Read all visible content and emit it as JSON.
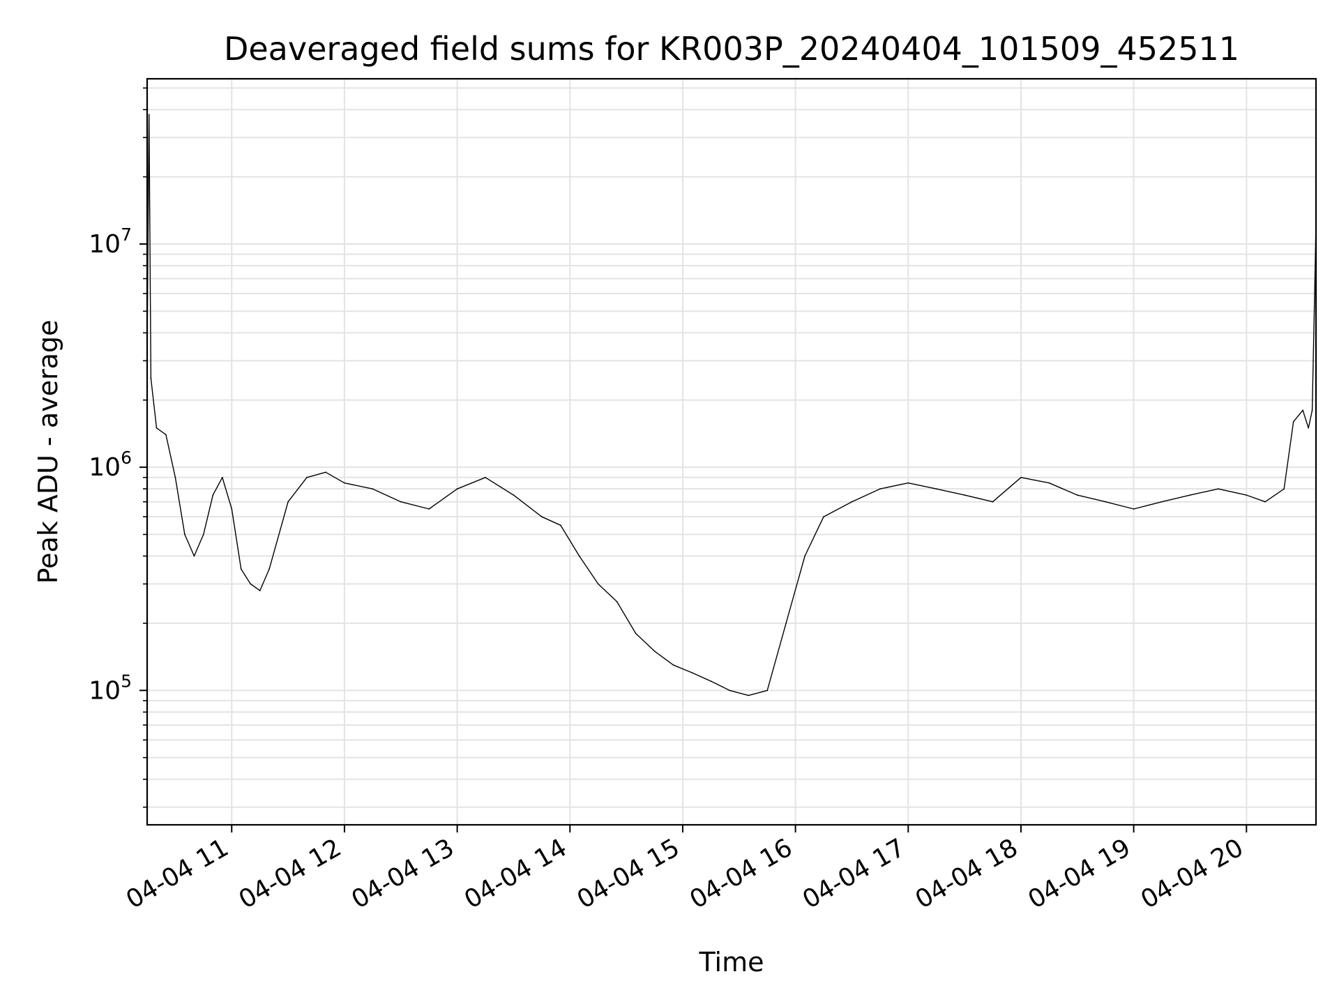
{
  "chart_data": {
    "type": "line",
    "title": "Deaveraged field sums for KR003P_20240404_101509_452511",
    "xlabel": "Time",
    "ylabel": "Peak ADU - average",
    "yscale": "log",
    "grid": true,
    "legend": "none",
    "xlim": [
      "2024-04-04 10:15",
      "2024-04-04 20:37"
    ],
    "ylim": [
      25000,
      55000000
    ],
    "x_tick_labels": [
      "04-04 11",
      "04-04 12",
      "04-04 13",
      "04-04 14",
      "04-04 15",
      "04-04 16",
      "04-04 17",
      "04-04 18",
      "04-04 19",
      "04-04 20"
    ],
    "y_tick_labels": [
      {
        "base": "10",
        "exponent": "5",
        "value": 100000
      },
      {
        "base": "10",
        "exponent": "6",
        "value": 1000000
      },
      {
        "base": "10",
        "exponent": "7",
        "value": 10000000
      }
    ],
    "series": [
      {
        "color": "#000000",
        "x": [
          "2024-04-04 10:15",
          "2024-04-04 10:16",
          "2024-04-04 10:17",
          "2024-04-04 10:20",
          "2024-04-04 10:25",
          "2024-04-04 10:30",
          "2024-04-04 10:35",
          "2024-04-04 10:40",
          "2024-04-04 10:45",
          "2024-04-04 10:50",
          "2024-04-04 10:55",
          "2024-04-04 11:00",
          "2024-04-04 11:05",
          "2024-04-04 11:10",
          "2024-04-04 11:15",
          "2024-04-04 11:20",
          "2024-04-04 11:30",
          "2024-04-04 11:40",
          "2024-04-04 11:50",
          "2024-04-04 12:00",
          "2024-04-04 12:15",
          "2024-04-04 12:30",
          "2024-04-04 12:45",
          "2024-04-04 13:00",
          "2024-04-04 13:15",
          "2024-04-04 13:30",
          "2024-04-04 13:45",
          "2024-04-04 13:55",
          "2024-04-04 14:05",
          "2024-04-04 14:15",
          "2024-04-04 14:25",
          "2024-04-04 14:35",
          "2024-04-04 14:45",
          "2024-04-04 14:55",
          "2024-04-04 15:05",
          "2024-04-04 15:15",
          "2024-04-04 15:25",
          "2024-04-04 15:35",
          "2024-04-04 15:45",
          "2024-04-04 15:55",
          "2024-04-04 16:05",
          "2024-04-04 16:15",
          "2024-04-04 16:30",
          "2024-04-04 16:45",
          "2024-04-04 17:00",
          "2024-04-04 17:15",
          "2024-04-04 17:30",
          "2024-04-04 17:45",
          "2024-04-04 18:00",
          "2024-04-04 18:15",
          "2024-04-04 18:30",
          "2024-04-04 18:45",
          "2024-04-04 19:00",
          "2024-04-04 19:15",
          "2024-04-04 19:30",
          "2024-04-04 19:45",
          "2024-04-04 20:00",
          "2024-04-04 20:10",
          "2024-04-04 20:20",
          "2024-04-04 20:25",
          "2024-04-04 20:30",
          "2024-04-04 20:33",
          "2024-04-04 20:35",
          "2024-04-04 20:37"
        ],
        "values": [
          3500000,
          38000000,
          2500000,
          1500000,
          1400000,
          900000,
          500000,
          400000,
          500000,
          750000,
          900000,
          650000,
          350000,
          300000,
          280000,
          350000,
          700000,
          900000,
          950000,
          850000,
          800000,
          700000,
          650000,
          800000,
          900000,
          750000,
          600000,
          550000,
          400000,
          300000,
          250000,
          180000,
          150000,
          130000,
          120000,
          110000,
          100000,
          95000,
          100000,
          200000,
          400000,
          600000,
          700000,
          800000,
          850000,
          800000,
          750000,
          700000,
          900000,
          850000,
          750000,
          700000,
          650000,
          700000,
          750000,
          800000,
          750000,
          700000,
          800000,
          1600000,
          1800000,
          1500000,
          1800000,
          12000000
        ]
      }
    ]
  }
}
